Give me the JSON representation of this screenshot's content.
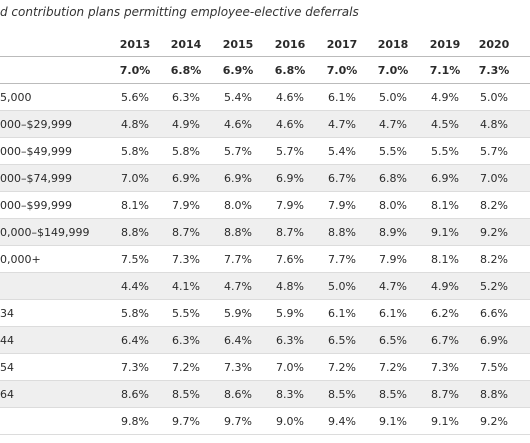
{
  "header": {
    "title": "d contribution plans permitting employee-elective deferrals",
    "years": [
      "2013",
      "2014",
      "2015",
      "2016",
      "2017",
      "2018",
      "2019",
      "2020"
    ]
  },
  "table": {
    "rows": [
      {
        "cells": [
          "7.0%",
          "6.8%",
          "6.9%",
          "6.8%",
          "7.0%",
          "7.0%",
          "7.1%",
          "7.3%"
        ]
      },
      {
        "label": "5,000",
        "cells": [
          "5.6%",
          "6.3%",
          "5.4%",
          "4.6%",
          "6.1%",
          "5.0%",
          "4.9%",
          "5.0%"
        ]
      },
      {
        "label": "000–$29,999",
        "cells": [
          "4.8%",
          "4.9%",
          "4.6%",
          "4.6%",
          "4.7%",
          "4.7%",
          "4.5%",
          "4.8%"
        ]
      },
      {
        "label": "000–$49,999",
        "cells": [
          "5.8%",
          "5.8%",
          "5.7%",
          "5.7%",
          "5.4%",
          "5.5%",
          "5.5%",
          "5.7%"
        ]
      },
      {
        "label": "000–$74,999",
        "cells": [
          "7.0%",
          "6.9%",
          "6.9%",
          "6.9%",
          "6.7%",
          "6.8%",
          "6.9%",
          "7.0%"
        ]
      },
      {
        "label": "000–$99,999",
        "cells": [
          "8.1%",
          "7.9%",
          "8.0%",
          "7.9%",
          "7.9%",
          "8.0%",
          "8.1%",
          "8.2%"
        ]
      },
      {
        "label": "0,000–$149,999",
        "cells": [
          "8.8%",
          "8.7%",
          "8.8%",
          "8.7%",
          "8.8%",
          "8.9%",
          "9.1%",
          "9.2%"
        ]
      },
      {
        "label": "0,000+",
        "cells": [
          "7.5%",
          "7.3%",
          "7.7%",
          "7.6%",
          "7.7%",
          "7.9%",
          "8.1%",
          "8.2%"
        ]
      },
      {
        "cells": [
          "4.4%",
          "4.1%",
          "4.7%",
          "4.8%",
          "5.0%",
          "4.7%",
          "4.9%",
          "5.2%"
        ]
      },
      {
        "label": "34",
        "cells": [
          "5.8%",
          "5.5%",
          "5.9%",
          "5.9%",
          "6.1%",
          "6.1%",
          "6.2%",
          "6.6%"
        ]
      },
      {
        "label": "44",
        "cells": [
          "6.4%",
          "6.3%",
          "6.4%",
          "6.3%",
          "6.5%",
          "6.5%",
          "6.7%",
          "6.9%"
        ]
      },
      {
        "label": "54",
        "cells": [
          "7.3%",
          "7.2%",
          "7.3%",
          "7.0%",
          "7.2%",
          "7.2%",
          "7.3%",
          "7.5%"
        ]
      },
      {
        "label": "64",
        "cells": [
          "8.6%",
          "8.5%",
          "8.6%",
          "8.3%",
          "8.5%",
          "8.5%",
          "8.7%",
          "8.8%"
        ]
      },
      {
        "cells": [
          "9.8%",
          "9.7%",
          "9.7%",
          "9.0%",
          "9.4%",
          "9.1%",
          "9.1%",
          "9.2%"
        ]
      }
    ]
  }
}
